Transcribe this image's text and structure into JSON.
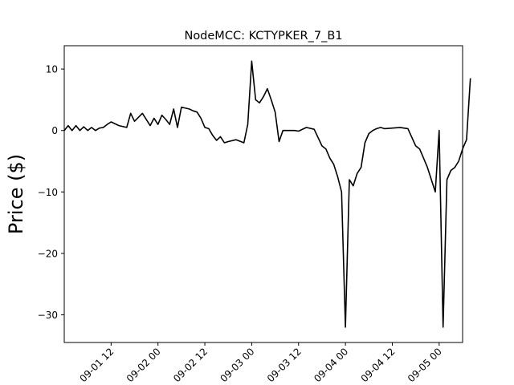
{
  "chart_data": {
    "type": "line",
    "title": "NodeMCC: KCTYPKER_7_B1",
    "xlabel": "",
    "ylabel": "Price ($)",
    "xlim": [
      "2016-09-01 00:00",
      "2016-09-05 06:00"
    ],
    "ylim": [
      -34.5,
      13.8
    ],
    "x_ticks": [
      "09-01 12",
      "09-02 00",
      "09-02 12",
      "09-03 00",
      "09-03 12",
      "09-04 00",
      "09-04 12",
      "09-05 00"
    ],
    "y_ticks": [
      10,
      0,
      -10,
      -20,
      -30
    ],
    "grid": false,
    "legend": "none",
    "line_color": "#000000",
    "series": [
      {
        "x": [
          "2016-09-01 00:00",
          "2016-09-01 01:00",
          "2016-09-01 02:00",
          "2016-09-01 03:00",
          "2016-09-01 04:00",
          "2016-09-01 05:00",
          "2016-09-01 06:00",
          "2016-09-01 07:00",
          "2016-09-01 08:00",
          "2016-09-01 09:00",
          "2016-09-01 10:00",
          "2016-09-01 11:00",
          "2016-09-01 12:00",
          "2016-09-01 14:00",
          "2016-09-01 16:00",
          "2016-09-01 17:00",
          "2016-09-01 18:00",
          "2016-09-01 20:00",
          "2016-09-01 22:00",
          "2016-09-01 23:00",
          "2016-09-02 00:00",
          "2016-09-02 01:00",
          "2016-09-02 02:00",
          "2016-09-02 03:00",
          "2016-09-02 04:00",
          "2016-09-02 05:00",
          "2016-09-02 06:00",
          "2016-09-02 08:00",
          "2016-09-02 09:00",
          "2016-09-02 10:00",
          "2016-09-02 11:00",
          "2016-09-02 12:00",
          "2016-09-02 13:00",
          "2016-09-02 14:00",
          "2016-09-02 15:00",
          "2016-09-02 16:00",
          "2016-09-02 17:00",
          "2016-09-02 18:00",
          "2016-09-02 20:00",
          "2016-09-02 22:00",
          "2016-09-02 23:00",
          "2016-09-03 00:00",
          "2016-09-03 01:00",
          "2016-09-03 02:00",
          "2016-09-03 03:00",
          "2016-09-03 04:00",
          "2016-09-03 05:00",
          "2016-09-03 06:00",
          "2016-09-03 07:00",
          "2016-09-03 08:00",
          "2016-09-03 09:00",
          "2016-09-03 10:00",
          "2016-09-03 11:00",
          "2016-09-03 12:00",
          "2016-09-03 14:00",
          "2016-09-03 16:00",
          "2016-09-03 18:00",
          "2016-09-03 19:00",
          "2016-09-03 20:00",
          "2016-09-03 21:00",
          "2016-09-03 22:00",
          "2016-09-03 23:00",
          "2016-09-04 00:00",
          "2016-09-04 01:00",
          "2016-09-04 02:00",
          "2016-09-04 03:00",
          "2016-09-04 04:00",
          "2016-09-04 05:00",
          "2016-09-04 06:00",
          "2016-09-04 07:00",
          "2016-09-04 08:00",
          "2016-09-04 09:00",
          "2016-09-04 10:00",
          "2016-09-04 12:00",
          "2016-09-04 14:00",
          "2016-09-04 16:00",
          "2016-09-04 18:00",
          "2016-09-04 19:00",
          "2016-09-04 20:00",
          "2016-09-04 21:00",
          "2016-09-04 22:00",
          "2016-09-04 23:00",
          "2016-09-05 00:00",
          "2016-09-05 01:00",
          "2016-09-05 02:00",
          "2016-09-05 03:00",
          "2016-09-05 04:00",
          "2016-09-05 05:00",
          "2016-09-05 06:00",
          "2016-09-05 07:00",
          "2016-09-05 08:00"
        ],
        "values": [
          0,
          0.8,
          0,
          0.8,
          0,
          0.6,
          0,
          0.5,
          0,
          0.4,
          0.5,
          1.0,
          1.4,
          0.8,
          0.5,
          2.8,
          1.5,
          2.8,
          0.8,
          2.0,
          1.0,
          2.5,
          1.8,
          1.0,
          3.5,
          0.5,
          3.8,
          3.5,
          3.2,
          3.0,
          2.0,
          0.5,
          0.3,
          -0.8,
          -1.6,
          -1.0,
          -2.0,
          -1.8,
          -1.5,
          -2.0,
          1.0,
          11.3,
          5.0,
          4.5,
          5.5,
          6.8,
          5.0,
          3.0,
          -1.8,
          0.0,
          0.0,
          0.0,
          0.0,
          -0.1,
          0.5,
          0.2,
          -2.5,
          -3.0,
          -4.5,
          -5.5,
          -7.5,
          -10.0,
          -32.0,
          -8.0,
          -9.0,
          -7.0,
          -6.0,
          -2.0,
          -0.5,
          0.0,
          0.3,
          0.5,
          0.3,
          0.4,
          0.5,
          0.3,
          -2.5,
          -3.0,
          -4.5,
          -6.0,
          -8.0,
          -10.0,
          0.0,
          -32.0,
          -8.0,
          -6.5,
          -6.0,
          -5.0,
          -3.0,
          -1.5,
          8.5
        ]
      }
    ]
  }
}
